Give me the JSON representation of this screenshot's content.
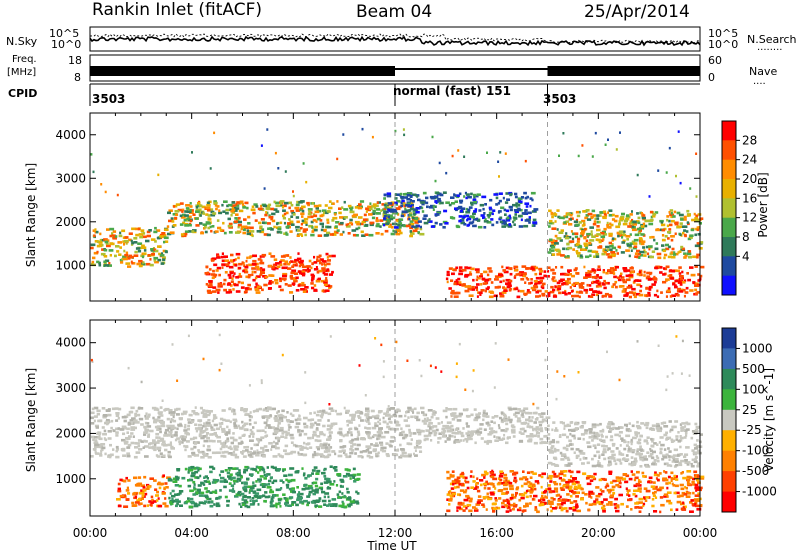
{
  "header": {
    "station": "Rankin Inlet (fitACF)",
    "beam": "Beam 04",
    "date": "25/Apr/2014"
  },
  "strip_labels": {
    "nsky": "N.Sky",
    "nsearch": "N.Search",
    "freq": "Freq.",
    "freq_unit": "[MHz]",
    "nave": "Nave",
    "cpid": "CPID",
    "dots": "........",
    "dots_short": "...."
  },
  "noise_axis": {
    "left_ticks": [
      "10^5",
      "10^0"
    ],
    "right_ticks": [
      "10^5",
      "10^0"
    ]
  },
  "freq_axis": {
    "left_ticks": [
      "18",
      "8"
    ],
    "right_ticks": [
      "60",
      "0"
    ]
  },
  "cpid_segments": [
    {
      "label": "3503",
      "start_hour": 0
    },
    {
      "label": "normal (fast) 151",
      "start_hour": 12
    },
    {
      "label": "3503",
      "start_hour": 18
    }
  ],
  "chart_data": [
    {
      "type": "heatmap",
      "quantity": "Power",
      "ylabel": "Slant Range [km]",
      "xlabel": "Time UT",
      "x_range_hours": [
        0,
        24
      ],
      "ylim": [
        180,
        4500
      ],
      "y_ticks": [
        1000,
        2000,
        3000,
        4000
      ],
      "x_tick_labels": [
        "00:00",
        "04:00",
        "08:00",
        "12:00",
        "16:00",
        "20:00",
        "00:00"
      ],
      "colorbar": {
        "label": "Power [dB]",
        "ticks": [
          "28",
          "24",
          "20",
          "16",
          "12",
          "8",
          "4"
        ],
        "colors": [
          "#ff0000",
          "#ff5000",
          "#ff8c00",
          "#e8b000",
          "#b0c030",
          "#4aa84a",
          "#2f7a5a",
          "#1f4aa0",
          "#1010ff"
        ]
      },
      "features": [
        {
          "t0": 0.0,
          "t1": 3.0,
          "r0": 1000,
          "r1": 1900,
          "level": "medium"
        },
        {
          "t0": 3.0,
          "t1": 13.0,
          "r0": 1700,
          "r1": 2500,
          "level": "medium"
        },
        {
          "t0": 4.5,
          "t1": 9.5,
          "r0": 400,
          "r1": 1300,
          "level": "strong"
        },
        {
          "t0": 11.5,
          "t1": 17.5,
          "r0": 1900,
          "r1": 2700,
          "level": "weak"
        },
        {
          "t0": 14.0,
          "t1": 24.0,
          "r0": 300,
          "r1": 1000,
          "level": "strong"
        },
        {
          "t0": 18.0,
          "t1": 24.0,
          "r0": 1200,
          "r1": 2300,
          "level": "medium"
        }
      ]
    },
    {
      "type": "heatmap",
      "quantity": "Velocity",
      "ylabel": "Slant Range [km]",
      "xlabel": "Time UT",
      "x_range_hours": [
        0,
        24
      ],
      "ylim": [
        180,
        4500
      ],
      "y_ticks": [
        1000,
        2000,
        3000,
        4000
      ],
      "x_tick_labels": [
        "00:00",
        "04:00",
        "08:00",
        "12:00",
        "16:00",
        "20:00",
        "00:00"
      ],
      "colorbar": {
        "label": "Velocity [m s^-1]",
        "ticks": [
          "1000",
          "500",
          "100",
          "25",
          "-25",
          "-100",
          "-500",
          "-1000"
        ],
        "colors": [
          "#1c3c96",
          "#3c6cb4",
          "#2e8a5a",
          "#3cb43c",
          "#c8c8c0",
          "#ffb000",
          "#ff8000",
          "#ff4000",
          "#ff0000"
        ]
      },
      "features": [
        {
          "t0": 0.0,
          "t1": 13.0,
          "r0": 1500,
          "r1": 2600,
          "level": "ground"
        },
        {
          "t0": 1.0,
          "t1": 3.0,
          "r0": 400,
          "r1": 1100,
          "level": "orange"
        },
        {
          "t0": 3.0,
          "t1": 10.5,
          "r0": 400,
          "r1": 1300,
          "level": "green"
        },
        {
          "t0": 13.0,
          "t1": 18.0,
          "r0": 1800,
          "r1": 2600,
          "level": "ground"
        },
        {
          "t0": 14.0,
          "t1": 24.0,
          "r0": 300,
          "r1": 1200,
          "level": "orange"
        },
        {
          "t0": 18.0,
          "t1": 24.0,
          "r0": 1300,
          "r1": 2300,
          "level": "ground"
        }
      ]
    }
  ]
}
